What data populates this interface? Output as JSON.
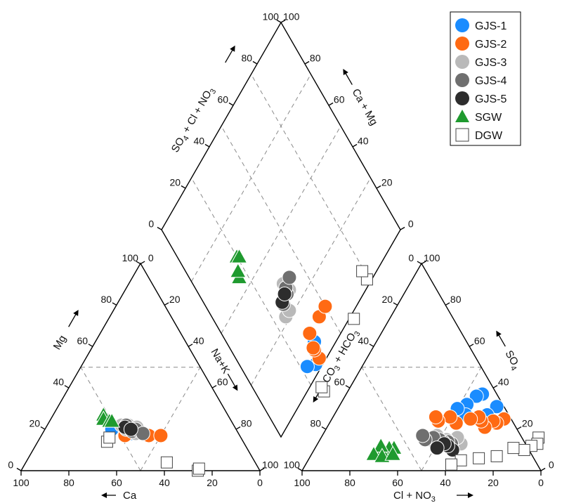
{
  "chart_data": {
    "type": "scatter",
    "subtype": "piper-diagram",
    "axes": {
      "ca": {
        "label": "Ca",
        "ticks": [
          "100",
          "80",
          "60",
          "40",
          "20",
          "0"
        ]
      },
      "mg": {
        "label": "Mg",
        "ticks": [
          "0",
          "20",
          "40",
          "60",
          "80",
          "100"
        ]
      },
      "nak": {
        "label": "Na+K",
        "ticks": [
          "0",
          "20",
          "40",
          "60",
          "80",
          "100"
        ]
      },
      "cl": {
        "label": "Cl + NO",
        "sub": "3",
        "ticks": [
          "100",
          "80",
          "60",
          "40",
          "20",
          "0"
        ]
      },
      "so4": {
        "label": "SO",
        "sub": "4",
        "ticks": [
          "0",
          "20",
          "40",
          "60",
          "80",
          "100"
        ]
      },
      "co3": {
        "label": "CO",
        "sub": "3",
        "label2": " + HCO",
        "sub2": "3",
        "ticks": [
          "0",
          "20",
          "40",
          "60",
          "80",
          "100"
        ]
      },
      "dso4": {
        "label": "SO",
        "sub": "4",
        "label2": " + Cl  + NO",
        "sub2": "3",
        "ticks": [
          "0",
          "20",
          "40",
          "60",
          "80",
          "100"
        ]
      },
      "dcamg": {
        "label": "Ca + Mg",
        "ticks": [
          "0",
          "20",
          "40",
          "60",
          "80",
          "100"
        ]
      }
    },
    "series": [
      {
        "name": "GJS-1",
        "color": "#1a8cff",
        "marker": "circle",
        "cation": [
          [
            47,
            21
          ],
          [
            45,
            18
          ],
          [
            52,
            20
          ]
        ],
        "anion": [
          [
            66,
            31
          ],
          [
            64,
            27
          ],
          [
            57,
            37
          ],
          [
            55,
            36
          ],
          [
            53,
            32
          ],
          [
            55,
            27
          ],
          [
            50,
            30
          ]
        ]
      },
      {
        "name": "GJS-2",
        "color": "#ff6a13",
        "marker": "circle",
        "cation": [
          [
            45,
            20
          ],
          [
            47,
            18
          ],
          [
            48,
            17
          ],
          [
            43,
            20
          ],
          [
            38,
            17
          ],
          [
            33,
            17
          ]
        ],
        "anion": [
          [
            72,
            25
          ],
          [
            70,
            23
          ],
          [
            68,
            24
          ],
          [
            66,
            21
          ],
          [
            63,
            24
          ],
          [
            61,
            26
          ],
          [
            58,
            25
          ],
          [
            53,
            23
          ],
          [
            49,
            26
          ],
          [
            45,
            24
          ],
          [
            43,
            26
          ]
        ]
      },
      {
        "name": "GJS-3",
        "color": "#b9b9b9",
        "marker": "circle",
        "cation": [
          [
            47,
            22
          ],
          [
            46,
            20
          ],
          [
            44,
            22
          ],
          [
            43,
            18
          ],
          [
            41,
            21
          ]
        ],
        "anion": [
          [
            60,
            13
          ],
          [
            57,
            16
          ],
          [
            56,
            12
          ],
          [
            53,
            15
          ],
          [
            50,
            14
          ],
          [
            48,
            17
          ],
          [
            46,
            15
          ]
        ]
      },
      {
        "name": "GJS-4",
        "color": "#6f6f6f",
        "marker": "circle",
        "cation": [
          [
            45,
            22
          ],
          [
            44,
            19
          ],
          [
            42,
            20
          ],
          [
            40,
            18
          ]
        ],
        "anion": [
          [
            56,
            13
          ],
          [
            54,
            14
          ],
          [
            52,
            14
          ],
          [
            50,
            15
          ],
          [
            47,
            16
          ],
          [
            44,
            15
          ],
          [
            42,
            17
          ]
        ]
      },
      {
        "name": "GJS-5",
        "color": "#2d2d2d",
        "marker": "circle",
        "cation": [
          [
            46,
            21
          ],
          [
            44,
            20
          ]
        ],
        "anion": [
          [
            58,
            10
          ],
          [
            55,
            12
          ],
          [
            53,
            13
          ],
          [
            51,
            11
          ]
        ]
      },
      {
        "name": "SGW",
        "color": "#1f9a2f",
        "marker": "triangle",
        "cation": [
          [
            52,
            27
          ],
          [
            53,
            25
          ],
          [
            51,
            24
          ],
          [
            50,
            24
          ]
        ],
        "anion": [
          [
            33,
            11
          ],
          [
            31,
            11
          ],
          [
            29,
            9
          ],
          [
            27,
            12
          ],
          [
            26,
            8
          ],
          [
            30,
            7
          ],
          [
            34,
            8
          ]
        ]
      },
      {
        "name": "DGW",
        "color": "#ffffff",
        "marker": "square",
        "cation": [
          [
            57,
            14
          ],
          [
            55,
            16
          ],
          [
            37,
            4
          ],
          [
            26,
            0
          ],
          [
            25,
            1
          ]
        ],
        "anion": [
          [
            91,
            16
          ],
          [
            92,
            13
          ],
          [
            90,
            12
          ],
          [
            88,
            10
          ],
          [
            83,
            11
          ],
          [
            78,
            7
          ],
          [
            71,
            6
          ],
          [
            64,
            5
          ],
          [
            61,
            3
          ]
        ]
      }
    ],
    "legend_position": "top-right"
  }
}
